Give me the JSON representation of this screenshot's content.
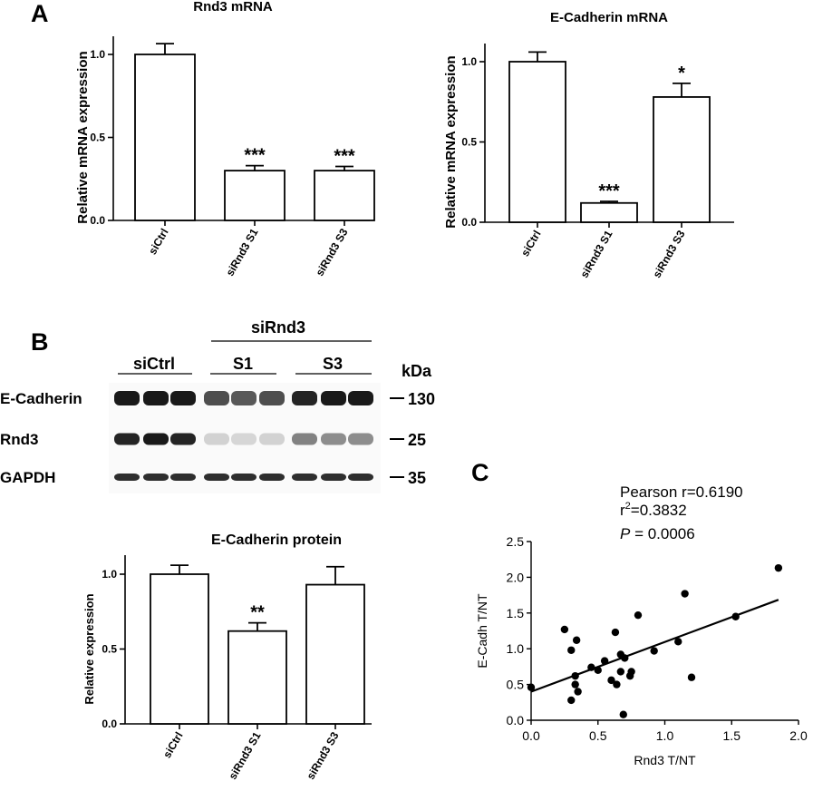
{
  "panels": {
    "a": "A",
    "b": "B",
    "c": "C"
  },
  "chart_data": [
    {
      "id": "rnd3-mrna",
      "type": "bar",
      "title": "Rnd3 mRNA",
      "ylabel": "Relative mRNA expression",
      "xlabel": "",
      "categories": [
        "siCtrl",
        "siRnd3 S1",
        "siRnd3 S3"
      ],
      "values": [
        1.0,
        0.3,
        0.3
      ],
      "errors": [
        0.065,
        0.03,
        0.025
      ],
      "annotations": [
        "",
        "***",
        "***"
      ],
      "ylim": [
        0,
        1.0
      ],
      "yticks": [
        "0.0",
        "0.5",
        "1.0"
      ]
    },
    {
      "id": "ecad-mrna",
      "type": "bar",
      "title": "E-Cadherin mRNA",
      "ylabel": "Relative mRNA expression",
      "xlabel": "",
      "categories": [
        "siCtrl",
        "siRnd3 S1",
        "siRnd3 S3"
      ],
      "values": [
        1.0,
        0.12,
        0.78
      ],
      "errors": [
        0.06,
        0.01,
        0.085
      ],
      "annotations": [
        "",
        "***",
        "*"
      ],
      "ylim": [
        0,
        1.0
      ],
      "yticks": [
        "0.0",
        "0.5",
        "1.0"
      ]
    },
    {
      "id": "ecad-protein",
      "type": "bar",
      "title": "E-Cadherin protein",
      "ylabel": "Relative expression",
      "xlabel": "",
      "categories": [
        "siCtrl",
        "siRnd3 S1",
        "siRnd3 S3"
      ],
      "values": [
        1.0,
        0.62,
        0.93
      ],
      "errors": [
        0.06,
        0.055,
        0.12
      ],
      "annotations": [
        "",
        "**",
        ""
      ],
      "ylim": [
        0,
        1.0
      ],
      "yticks": [
        "0.0",
        "0.5",
        "1.0"
      ]
    },
    {
      "id": "correlation",
      "type": "scatter",
      "xlabel": "Rnd3 T/NT",
      "ylabel": "E-Cadh T/NT",
      "xlim": [
        0.0,
        2.0
      ],
      "ylim": [
        0.0,
        2.5
      ],
      "xticks": [
        "0.0",
        "0.5",
        "1.0",
        "1.5",
        "2.0"
      ],
      "yticks": [
        "0.0",
        "0.5",
        "1.0",
        "1.5",
        "2.0",
        "2.5"
      ],
      "points": [
        [
          0.0,
          0.46
        ],
        [
          0.25,
          1.27
        ],
        [
          0.3,
          0.98
        ],
        [
          0.3,
          0.28
        ],
        [
          0.33,
          0.5
        ],
        [
          0.33,
          0.62
        ],
        [
          0.34,
          1.12
        ],
        [
          0.35,
          0.4
        ],
        [
          0.45,
          0.74
        ],
        [
          0.5,
          0.7
        ],
        [
          0.55,
          0.83
        ],
        [
          0.6,
          0.56
        ],
        [
          0.63,
          1.23
        ],
        [
          0.64,
          0.5
        ],
        [
          0.67,
          0.92
        ],
        [
          0.67,
          0.68
        ],
        [
          0.69,
          0.08
        ],
        [
          0.7,
          0.87
        ],
        [
          0.74,
          0.62
        ],
        [
          0.75,
          0.68
        ],
        [
          0.8,
          1.47
        ],
        [
          0.92,
          0.97
        ],
        [
          1.1,
          1.1
        ],
        [
          1.15,
          1.77
        ],
        [
          1.2,
          0.6
        ],
        [
          1.53,
          1.45
        ],
        [
          1.85,
          2.13
        ]
      ],
      "fit": {
        "intercept": 0.4,
        "slope": 0.695,
        "x_end": 1.85
      },
      "stats": {
        "pearson": "Pearson r=0.6190",
        "r2_prefix": "r",
        "r2_sup": "2",
        "r2_value": "=0.3832",
        "p_letter": "P",
        "p_value": " = 0.0006"
      }
    }
  ],
  "blot": {
    "group_header": "siRnd3",
    "lane_groups": [
      "siCtrl",
      "S1",
      "S3"
    ],
    "kda_label": "kDa",
    "rows": [
      {
        "name": "E-Cadherin",
        "marker": "130",
        "intensity": [
          1.0,
          1.0,
          1.0,
          0.75,
          0.7,
          0.75,
          0.95,
          1.0,
          1.0
        ]
      },
      {
        "name": "Rnd3",
        "marker": "25",
        "intensity": [
          0.95,
          1.0,
          0.95,
          0.12,
          0.1,
          0.12,
          0.5,
          0.45,
          0.45
        ]
      },
      {
        "name": "GAPDH",
        "marker": "35",
        "intensity": [
          0.9,
          0.9,
          0.9,
          0.9,
          0.9,
          0.9,
          0.9,
          0.9,
          0.9
        ]
      }
    ]
  }
}
